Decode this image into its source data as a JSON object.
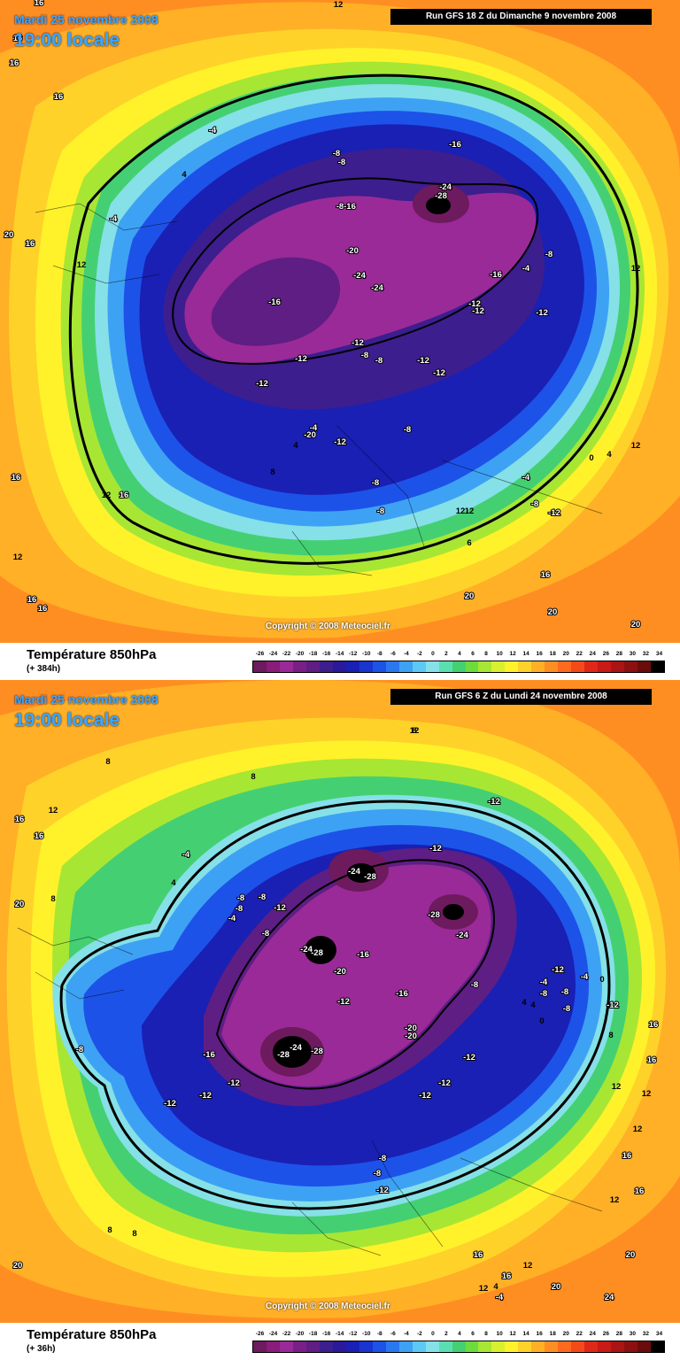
{
  "colors": {
    "-26": "#6e1a5e",
    "-24": "#8a1c7a",
    "-22": "#9a2a98",
    "-20": "#7a1f86",
    "-18": "#5e1e84",
    "-16": "#3c1e8e",
    "-14": "#2a1a9a",
    "-12": "#1a20b4",
    "-10": "#1a34d0",
    "-8": "#1d52e8",
    "-6": "#2a78f0",
    "-4": "#3ea2f4",
    "-2": "#5ec8f4",
    "0": "#86e0e8",
    "2": "#5ae0b0",
    "4": "#44d072",
    "6": "#6cdc3c",
    "8": "#a8e634",
    "10": "#d8f030",
    "12": "#fff22a",
    "14": "#ffd22a",
    "16": "#ffb026",
    "18": "#ff8e22",
    "20": "#ff6a1e",
    "22": "#f44a1a",
    "24": "#e02818",
    "26": "#c81a16",
    "28": "#aa1414",
    "30": "#8c1010",
    "32": "#6a0c0c",
    "34": "#000000",
    "pole_core": "#000000"
  },
  "scale_labels": [
    "-26",
    "-24",
    "-22",
    "-20",
    "-18",
    "-16",
    "-14",
    "-12",
    "-10",
    "-8",
    "-6",
    "-4",
    "-2",
    "0",
    "2",
    "4",
    "6",
    "8",
    "10",
    "12",
    "14",
    "16",
    "18",
    "20",
    "22",
    "24",
    "26",
    "28",
    "30",
    "32",
    "34"
  ],
  "panels": [
    {
      "date": "Mardi 25 novembre 2008",
      "time": "19:00 locale",
      "run": "Run GFS 18 Z du Dimanche 9 novembre 2008",
      "copyright": "Copyright © 2008 Meteociel.fr",
      "variable": "Température 850hPa",
      "lead": "(+ 384h)",
      "labels": [
        "16",
        "16",
        "12",
        "16",
        "16",
        "-4",
        "4",
        "-4",
        "20",
        "16",
        "12",
        "-8",
        "-8",
        "-16",
        "-24",
        "-28",
        "-8",
        "-16",
        "-20",
        "-24",
        "-24",
        "-16",
        "-4",
        "-8",
        "-16",
        "-12",
        "-12",
        "-12",
        "12",
        "12",
        "-12",
        "-8",
        "-8",
        "-12",
        "-12",
        "-12",
        "-12",
        "-4",
        "-20",
        "4",
        "-12",
        "-8",
        "8",
        "0",
        "4",
        "12",
        "16",
        "12",
        "12",
        "-4",
        "-8",
        "-8",
        "-8",
        "-12",
        "12",
        "6",
        "16",
        "16",
        "16",
        "16",
        "20",
        "20",
        "20"
      ]
    },
    {
      "date": "Mardi 25 novembre 2008",
      "time": "19:00 locale",
      "run": "Run GFS 6 Z du Lundi 24 novembre 2008",
      "copyright": "Copyright © 2008 Meteociel.fr",
      "variable": "Température 850hPa",
      "lead": "(+ 36h)",
      "labels": [
        "12",
        "8",
        "8",
        "12",
        "16",
        "16",
        "20",
        "8",
        "-4",
        "4",
        "-8",
        "-8",
        "-8",
        "-12",
        "-4",
        "-8",
        "-12",
        "-24",
        "-28",
        "-12",
        "-28",
        "-24",
        "-24",
        "-28",
        "-20",
        "-16",
        "-12",
        "-16",
        "-20",
        "-20",
        "-8",
        "-12",
        "-8",
        "-24",
        "-28",
        "-28",
        "-16",
        "-12",
        "-12",
        "-12",
        "-12",
        "-12",
        "-12",
        "-4",
        "0",
        "-8",
        "-12",
        "-8",
        "-8",
        "-4",
        "0",
        "4",
        "4",
        "8",
        "12",
        "16",
        "16",
        "12",
        "12",
        "16",
        "16",
        "12",
        "12",
        "8",
        "8",
        "-8",
        "-8",
        "-12",
        "20",
        "20",
        "24",
        "20",
        "16",
        "12",
        "16",
        "-4",
        "4",
        "8"
      ]
    }
  ]
}
